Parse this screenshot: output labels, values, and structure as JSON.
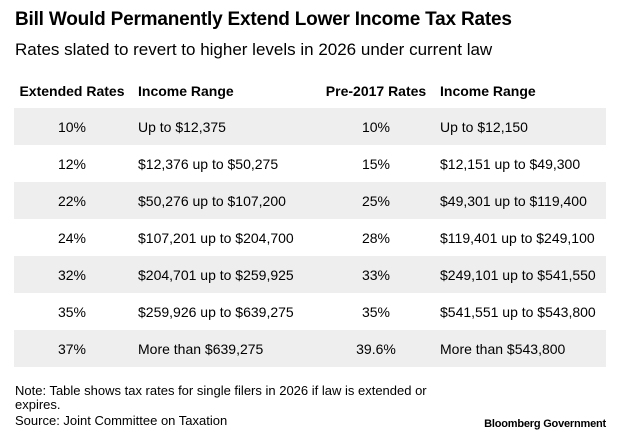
{
  "chart_data": {
    "type": "table",
    "title": "Bill Would Permanently Extend Lower Income Tax Rates",
    "subtitle": "Rates slated to revert to higher levels in 2026 under current law",
    "columns": [
      "Extended Rates",
      "Income Range",
      "Pre-2017 Rates",
      "Income Range"
    ],
    "rows": [
      [
        "10%",
        "Up to $12,375",
        "10%",
        "Up to $12,150"
      ],
      [
        "12%",
        "$12,376 up to $50,275",
        "15%",
        "$12,151 up to $49,300"
      ],
      [
        "22%",
        "$50,276 up to $107,200",
        "25%",
        "$49,301 up to $119,400"
      ],
      [
        "24%",
        "$107,201 up to $204,700",
        "28%",
        "$119,401 up to $249,100"
      ],
      [
        "32%",
        "$204,701 up to $259,925",
        "33%",
        "$249,101 up to $541,550"
      ],
      [
        "35%",
        "$259,926 up to $639,275",
        "35%",
        "$541,551 up to $543,800"
      ],
      [
        "37%",
        "More than $639,275",
        "39.6%",
        "More than $543,800"
      ]
    ],
    "note": "Note: Table shows tax rates for single filers in 2026 if law is extended or expires.",
    "source": "Source: Joint Committee on Taxation",
    "brand": "Bloomberg Government",
    "row_shading_color": "#eeeeee"
  }
}
